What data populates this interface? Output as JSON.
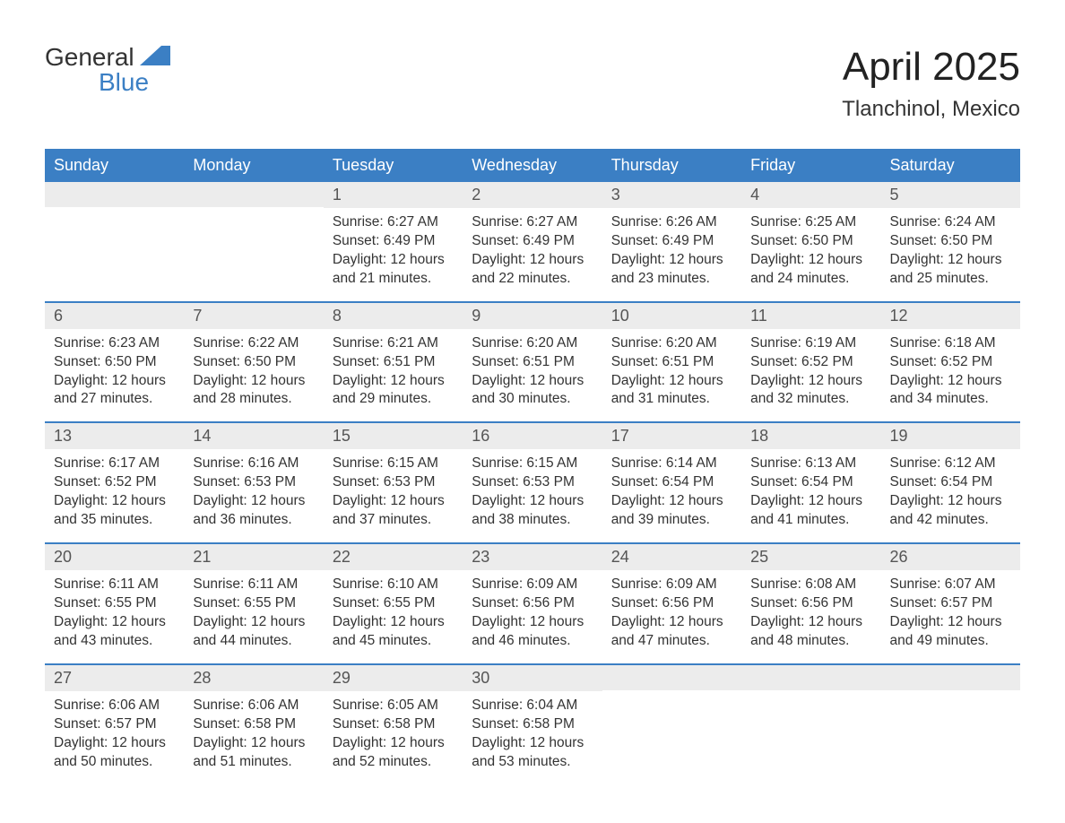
{
  "logo": {
    "text_top": "General",
    "text_bottom": "Blue"
  },
  "header": {
    "title": "April 2025",
    "location": "Tlanchinol, Mexico"
  },
  "colors": {
    "header_bg": "#3b7fc4",
    "header_text": "#ffffff",
    "daynum_bg": "#ececec",
    "daynum_text": "#555555",
    "body_text": "#333333",
    "week_border": "#3b7fc4",
    "logo_blue": "#3b7fc4"
  },
  "typography": {
    "title_fontsize": 44,
    "location_fontsize": 24,
    "dayheader_fontsize": 18,
    "daynum_fontsize": 18,
    "content_fontsize": 15.5
  },
  "day_names": [
    "Sunday",
    "Monday",
    "Tuesday",
    "Wednesday",
    "Thursday",
    "Friday",
    "Saturday"
  ],
  "weeks": [
    [
      {
        "day": "",
        "sunrise": "",
        "sunset": "",
        "daylight": ""
      },
      {
        "day": "",
        "sunrise": "",
        "sunset": "",
        "daylight": ""
      },
      {
        "day": "1",
        "sunrise": "Sunrise: 6:27 AM",
        "sunset": "Sunset: 6:49 PM",
        "daylight": "Daylight: 12 hours and 21 minutes."
      },
      {
        "day": "2",
        "sunrise": "Sunrise: 6:27 AM",
        "sunset": "Sunset: 6:49 PM",
        "daylight": "Daylight: 12 hours and 22 minutes."
      },
      {
        "day": "3",
        "sunrise": "Sunrise: 6:26 AM",
        "sunset": "Sunset: 6:49 PM",
        "daylight": "Daylight: 12 hours and 23 minutes."
      },
      {
        "day": "4",
        "sunrise": "Sunrise: 6:25 AM",
        "sunset": "Sunset: 6:50 PM",
        "daylight": "Daylight: 12 hours and 24 minutes."
      },
      {
        "day": "5",
        "sunrise": "Sunrise: 6:24 AM",
        "sunset": "Sunset: 6:50 PM",
        "daylight": "Daylight: 12 hours and 25 minutes."
      }
    ],
    [
      {
        "day": "6",
        "sunrise": "Sunrise: 6:23 AM",
        "sunset": "Sunset: 6:50 PM",
        "daylight": "Daylight: 12 hours and 27 minutes."
      },
      {
        "day": "7",
        "sunrise": "Sunrise: 6:22 AM",
        "sunset": "Sunset: 6:50 PM",
        "daylight": "Daylight: 12 hours and 28 minutes."
      },
      {
        "day": "8",
        "sunrise": "Sunrise: 6:21 AM",
        "sunset": "Sunset: 6:51 PM",
        "daylight": "Daylight: 12 hours and 29 minutes."
      },
      {
        "day": "9",
        "sunrise": "Sunrise: 6:20 AM",
        "sunset": "Sunset: 6:51 PM",
        "daylight": "Daylight: 12 hours and 30 minutes."
      },
      {
        "day": "10",
        "sunrise": "Sunrise: 6:20 AM",
        "sunset": "Sunset: 6:51 PM",
        "daylight": "Daylight: 12 hours and 31 minutes."
      },
      {
        "day": "11",
        "sunrise": "Sunrise: 6:19 AM",
        "sunset": "Sunset: 6:52 PM",
        "daylight": "Daylight: 12 hours and 32 minutes."
      },
      {
        "day": "12",
        "sunrise": "Sunrise: 6:18 AM",
        "sunset": "Sunset: 6:52 PM",
        "daylight": "Daylight: 12 hours and 34 minutes."
      }
    ],
    [
      {
        "day": "13",
        "sunrise": "Sunrise: 6:17 AM",
        "sunset": "Sunset: 6:52 PM",
        "daylight": "Daylight: 12 hours and 35 minutes."
      },
      {
        "day": "14",
        "sunrise": "Sunrise: 6:16 AM",
        "sunset": "Sunset: 6:53 PM",
        "daylight": "Daylight: 12 hours and 36 minutes."
      },
      {
        "day": "15",
        "sunrise": "Sunrise: 6:15 AM",
        "sunset": "Sunset: 6:53 PM",
        "daylight": "Daylight: 12 hours and 37 minutes."
      },
      {
        "day": "16",
        "sunrise": "Sunrise: 6:15 AM",
        "sunset": "Sunset: 6:53 PM",
        "daylight": "Daylight: 12 hours and 38 minutes."
      },
      {
        "day": "17",
        "sunrise": "Sunrise: 6:14 AM",
        "sunset": "Sunset: 6:54 PM",
        "daylight": "Daylight: 12 hours and 39 minutes."
      },
      {
        "day": "18",
        "sunrise": "Sunrise: 6:13 AM",
        "sunset": "Sunset: 6:54 PM",
        "daylight": "Daylight: 12 hours and 41 minutes."
      },
      {
        "day": "19",
        "sunrise": "Sunrise: 6:12 AM",
        "sunset": "Sunset: 6:54 PM",
        "daylight": "Daylight: 12 hours and 42 minutes."
      }
    ],
    [
      {
        "day": "20",
        "sunrise": "Sunrise: 6:11 AM",
        "sunset": "Sunset: 6:55 PM",
        "daylight": "Daylight: 12 hours and 43 minutes."
      },
      {
        "day": "21",
        "sunrise": "Sunrise: 6:11 AM",
        "sunset": "Sunset: 6:55 PM",
        "daylight": "Daylight: 12 hours and 44 minutes."
      },
      {
        "day": "22",
        "sunrise": "Sunrise: 6:10 AM",
        "sunset": "Sunset: 6:55 PM",
        "daylight": "Daylight: 12 hours and 45 minutes."
      },
      {
        "day": "23",
        "sunrise": "Sunrise: 6:09 AM",
        "sunset": "Sunset: 6:56 PM",
        "daylight": "Daylight: 12 hours and 46 minutes."
      },
      {
        "day": "24",
        "sunrise": "Sunrise: 6:09 AM",
        "sunset": "Sunset: 6:56 PM",
        "daylight": "Daylight: 12 hours and 47 minutes."
      },
      {
        "day": "25",
        "sunrise": "Sunrise: 6:08 AM",
        "sunset": "Sunset: 6:56 PM",
        "daylight": "Daylight: 12 hours and 48 minutes."
      },
      {
        "day": "26",
        "sunrise": "Sunrise: 6:07 AM",
        "sunset": "Sunset: 6:57 PM",
        "daylight": "Daylight: 12 hours and 49 minutes."
      }
    ],
    [
      {
        "day": "27",
        "sunrise": "Sunrise: 6:06 AM",
        "sunset": "Sunset: 6:57 PM",
        "daylight": "Daylight: 12 hours and 50 minutes."
      },
      {
        "day": "28",
        "sunrise": "Sunrise: 6:06 AM",
        "sunset": "Sunset: 6:58 PM",
        "daylight": "Daylight: 12 hours and 51 minutes."
      },
      {
        "day": "29",
        "sunrise": "Sunrise: 6:05 AM",
        "sunset": "Sunset: 6:58 PM",
        "daylight": "Daylight: 12 hours and 52 minutes."
      },
      {
        "day": "30",
        "sunrise": "Sunrise: 6:04 AM",
        "sunset": "Sunset: 6:58 PM",
        "daylight": "Daylight: 12 hours and 53 minutes."
      },
      {
        "day": "",
        "sunrise": "",
        "sunset": "",
        "daylight": ""
      },
      {
        "day": "",
        "sunrise": "",
        "sunset": "",
        "daylight": ""
      },
      {
        "day": "",
        "sunrise": "",
        "sunset": "",
        "daylight": ""
      }
    ]
  ]
}
